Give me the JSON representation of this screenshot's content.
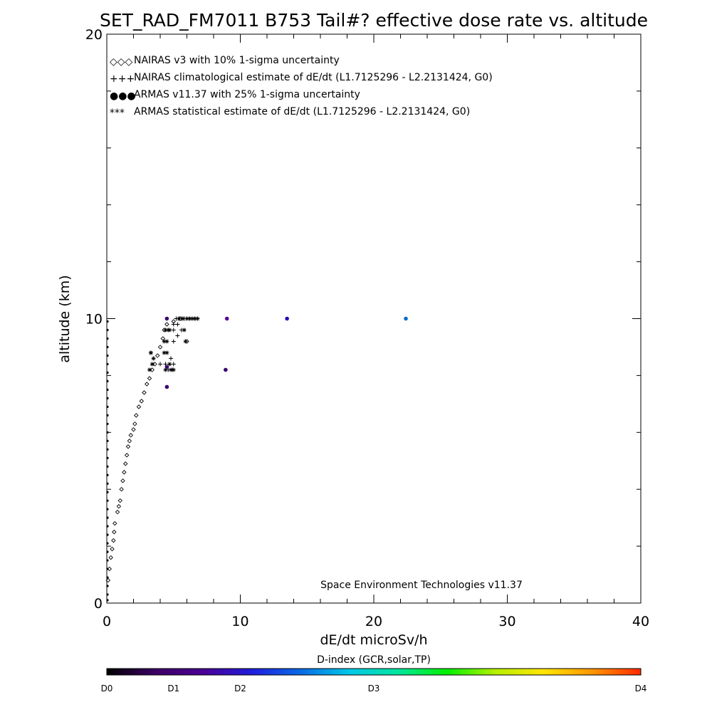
{
  "chart_data": {
    "type": "scatter",
    "title": "SET_RAD_FM7011  B753 Tail#? effective dose rate vs. altitude",
    "xlabel": "dE/dt microSv/h",
    "ylabel": "altitude (km)",
    "xlim": [
      0,
      40
    ],
    "ylim": [
      0,
      20
    ],
    "x_ticks": [
      0,
      10,
      20,
      30,
      40
    ],
    "y_ticks": [
      0,
      10,
      20
    ],
    "x_tick_labels": [
      "0",
      "10",
      "20",
      "30",
      "40"
    ],
    "y_tick_labels": [
      "0",
      "10",
      "20"
    ],
    "credit": "Space Environment Technologies v11.37",
    "legend_position": "top-left",
    "legend": [
      {
        "symbol": "◇◇◇",
        "label": "NAIRAS v3 with 10% 1-sigma uncertainty",
        "color": "#000000"
      },
      {
        "symbol": "+++",
        "label": "NAIRAS climatological estimate of dE/dt (L1.7125296 - L2.2131424, G0)",
        "color": "#000000"
      },
      {
        "symbol": "●●●",
        "label": "ARMAS v11.37 with 25% 1-sigma uncertainty",
        "color": "#1a3fd6"
      },
      {
        "symbol": "***",
        "label": "ARMAS statistical estimate of dE/dt (L1.7125296 - L2.2131424, G0)",
        "color": "#000000"
      }
    ],
    "series": [
      {
        "name": "NAIRAS v3 with 10% 1-sigma uncertainty",
        "marker": "diamond",
        "x": [
          0.1,
          0.2,
          0.3,
          0.4,
          0.5,
          0.55,
          0.6,
          0.8,
          0.9,
          1.0,
          1.1,
          1.2,
          1.3,
          1.4,
          1.5,
          1.6,
          1.7,
          1.8,
          2.0,
          2.1,
          2.2,
          2.4,
          2.6,
          2.8,
          3.0,
          3.2,
          3.4,
          3.6,
          3.8,
          4.0,
          4.2,
          4.3,
          4.5,
          5.0,
          5.5,
          6.0
        ],
        "y": [
          0.8,
          1.2,
          1.6,
          1.9,
          2.2,
          2.5,
          2.8,
          3.2,
          3.4,
          3.6,
          4.0,
          4.3,
          4.6,
          4.9,
          5.2,
          5.5,
          5.7,
          5.9,
          6.1,
          6.3,
          6.6,
          6.9,
          7.1,
          7.4,
          7.7,
          7.9,
          8.2,
          8.4,
          8.7,
          9.0,
          9.3,
          9.6,
          9.8,
          9.9,
          10.0,
          9.2
        ]
      },
      {
        "name": "NAIRAS climatological estimate of dE/dt (L1.7125296 - L2.2131424, G0)",
        "marker": "plus",
        "x": [
          4.0,
          4.4,
          4.8,
          5.0,
          5.2,
          5.4,
          5.6,
          5.8,
          6.0,
          6.2,
          6.4,
          6.6,
          6.8,
          5.0,
          5.3,
          5.6,
          5.0,
          5.3,
          5.0,
          4.6,
          4.9
        ],
        "y": [
          8.4,
          8.4,
          8.6,
          9.6,
          10.0,
          10.0,
          10.0,
          10.0,
          10.0,
          10.0,
          10.0,
          10.0,
          10.0,
          9.8,
          9.8,
          9.6,
          9.2,
          9.4,
          8.4,
          8.2,
          8.2
        ]
      },
      {
        "name": "ARMAS statistical estimate of dE/dt (L1.7125296 - L2.2131424, G0)",
        "marker": "asterisk",
        "x": [
          3.3,
          3.4,
          3.2,
          3.5,
          3.3,
          4.3,
          4.5,
          4.7,
          4.8,
          5.0,
          4.3,
          4.6,
          5.4,
          5.7,
          6.0,
          6.2,
          6.4,
          6.6,
          6.8,
          4.4,
          4.7,
          4.5,
          5.8,
          5.9,
          4.4
        ],
        "y": [
          8.8,
          8.4,
          8.2,
          8.6,
          8.8,
          8.8,
          8.8,
          8.4,
          8.2,
          8.2,
          9.2,
          9.6,
          10.0,
          10.0,
          10.0,
          10.0,
          10.0,
          10.0,
          10.0,
          9.6,
          9.6,
          9.2,
          9.6,
          9.2,
          8.2
        ]
      },
      {
        "name": "ARMAS v11.37 with 25% 1-sigma uncertainty",
        "marker": "dot",
        "x": [
          4.5,
          4.5,
          4.5,
          8.9,
          9.0,
          13.5,
          22.4
        ],
        "y": [
          10.0,
          8.3,
          7.6,
          8.2,
          10.0,
          10.0,
          10.0
        ],
        "colors": [
          "#3a0070",
          "#3a0070",
          "#3a0070",
          "#3a0070",
          "#5a0090",
          "#2a0ab4",
          "#0a6ac8"
        ]
      }
    ],
    "axis_markers": {
      "marker": "dot",
      "x": 0,
      "y": [
        0.1,
        0.3,
        0.6,
        0.9,
        1.2,
        1.5,
        1.8,
        2.1,
        2.4,
        2.7,
        3.0,
        3.3,
        3.6,
        3.9,
        4.2,
        4.5,
        4.8,
        5.1,
        5.4,
        5.7,
        6.0,
        6.3,
        6.6,
        6.9,
        7.2,
        7.5,
        7.8,
        8.1,
        8.4,
        8.7,
        9.0,
        9.3,
        9.6,
        9.9
      ]
    },
    "colorbar": {
      "title": "D-index (GCR,solar,TP)",
      "labels": [
        {
          "label": "D0",
          "pos": 0.0
        },
        {
          "label": "D1",
          "pos": 0.125
        },
        {
          "label": "D2",
          "pos": 0.25
        },
        {
          "label": "D3",
          "pos": 0.5
        },
        {
          "label": "D4",
          "pos": 1.0
        }
      ],
      "gradient": [
        "#000000",
        "#3c0064",
        "#4a0096",
        "#1e1edc",
        "#0a6ae6",
        "#00c8e6",
        "#00e6a0",
        "#00f000",
        "#b4f000",
        "#ffe600",
        "#ff9600",
        "#ff2800"
      ]
    }
  }
}
